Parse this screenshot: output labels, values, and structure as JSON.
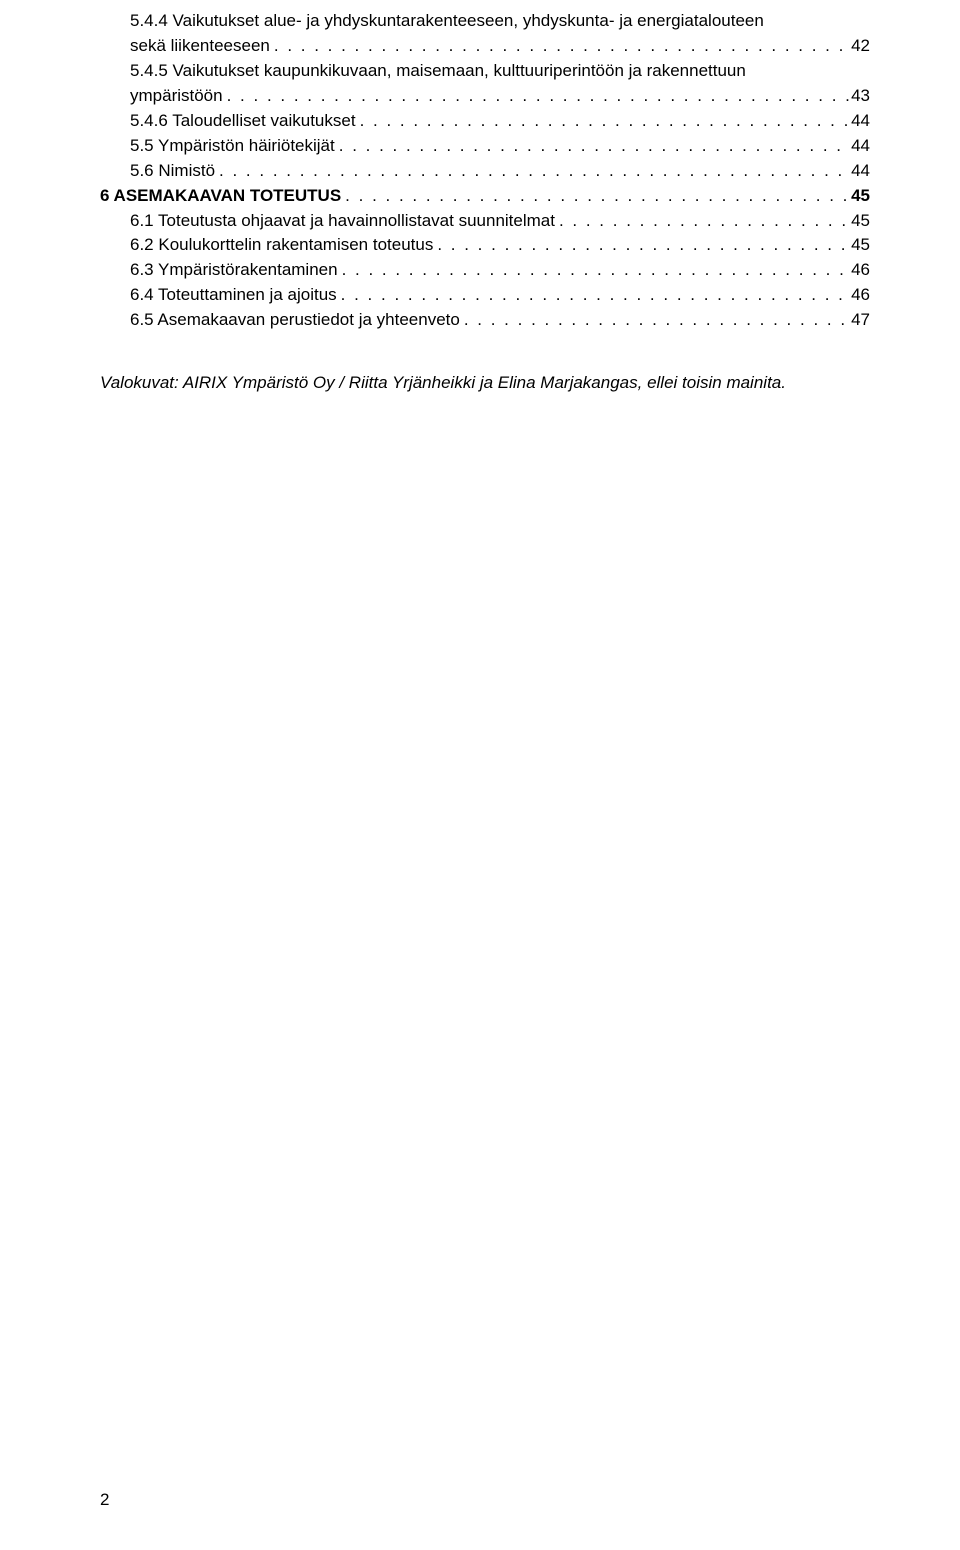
{
  "toc": [
    {
      "label": "5.4.4  Vaikutukset alue- ja yhdyskuntarakenteeseen, yhdyskunta- ja energiatalouteen sekä liikenteeseen",
      "page": "42",
      "indent": 2,
      "bold": false,
      "multiline": true
    },
    {
      "label": "5.4.5  Vaikutukset kaupunkikuvaan, maisemaan, kulttuuriperintöön ja rakennettuun ympäristöön",
      "page": "43",
      "indent": 2,
      "bold": false,
      "multiline": true
    },
    {
      "label": "5.4.6  Taloudelliset vaikutukset",
      "page": "44",
      "indent": 2,
      "bold": false
    },
    {
      "label": "5.5  Ympäristön häiriötekijät",
      "page": "44",
      "indent": 1,
      "bold": false
    },
    {
      "label": "5.6  Nimistö",
      "page": "44",
      "indent": 1,
      "bold": false
    },
    {
      "label": "6  ASEMAKAAVAN TOTEUTUS",
      "page": "45",
      "indent": 0,
      "bold": true
    },
    {
      "label": "6.1  Toteutusta ohjaavat ja havainnollistavat suunnitelmat",
      "page": "45",
      "indent": 1,
      "bold": false
    },
    {
      "label": "6.2  Koulukorttelin  rakentamisen  toteutus",
      "page": "45",
      "indent": 1,
      "bold": false
    },
    {
      "label": "6.3  Ympäristörakentaminen",
      "page": "46",
      "indent": 1,
      "bold": false
    },
    {
      "label": "6.4  Toteuttaminen ja ajoitus",
      "page": "46",
      "indent": 1,
      "bold": false
    },
    {
      "label": "6.5  Asemakaavan perustiedot ja yhteenveto",
      "page": "47",
      "indent": 1,
      "bold": false
    }
  ],
  "footnote": "Valokuvat: AIRIX Ympäristö Oy / Riitta Yrjänheikki ja Elina Marjakangas, ellei toisin mainita.",
  "page_number": "2",
  "colors": {
    "background": "#ffffff",
    "text": "#000000"
  }
}
